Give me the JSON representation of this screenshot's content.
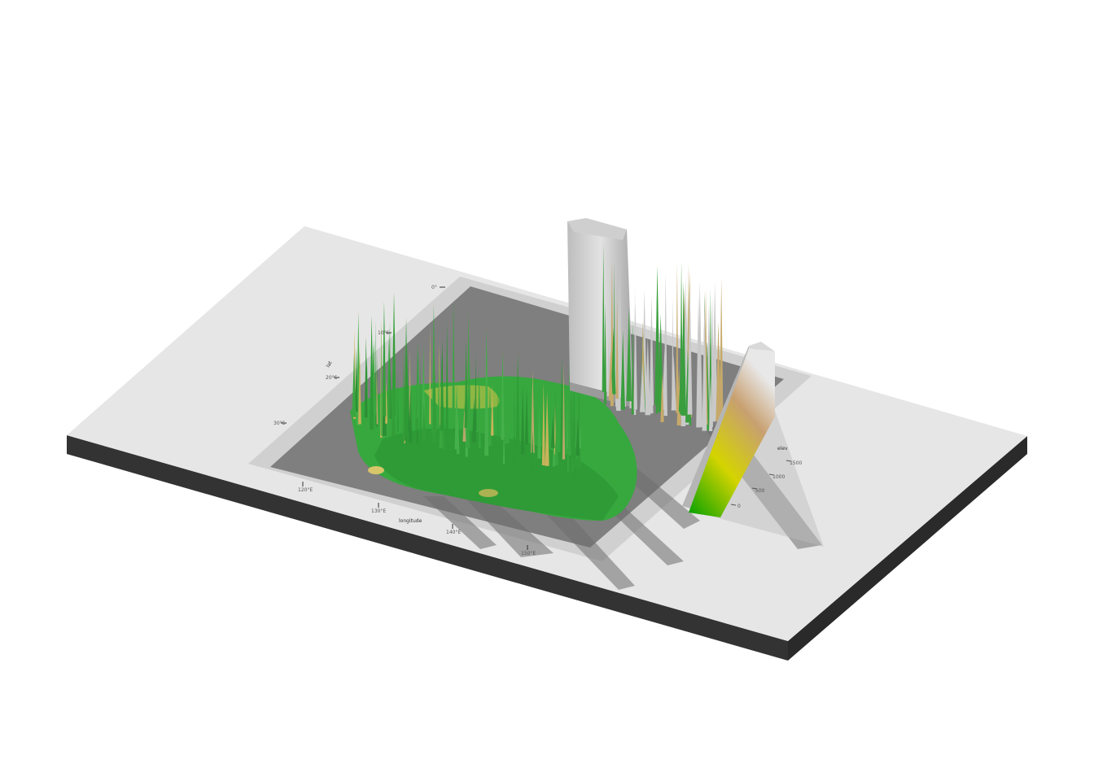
{
  "scene": {
    "type": "3d-relief-map-render",
    "background_color": "#ffffff",
    "base_color": "#e6e6e6",
    "base_side_color": "#333333",
    "panel_color": "#7f7f7f",
    "panel_border_color": "#bdbdbd",
    "terrain_low_color": "#2fae3a",
    "terrain_mid_color": "#c9c24a",
    "terrain_high_color": "#d3d3d3",
    "shadow_color": "#6e6e6e"
  },
  "axes": {
    "x_title": "longitude",
    "y_title": "lat",
    "x_ticks": [
      "120°E",
      "130°E",
      "140°E",
      "150°E"
    ],
    "y_ticks": [
      "30°S",
      "20°S",
      "10°S",
      "0°"
    ]
  },
  "legend": {
    "title": "elev",
    "ticks": [
      "0",
      "500",
      "1000",
      "1500"
    ],
    "gradient": [
      "#00a000",
      "#d4d400",
      "#c8a070",
      "#e8e8e8"
    ]
  }
}
